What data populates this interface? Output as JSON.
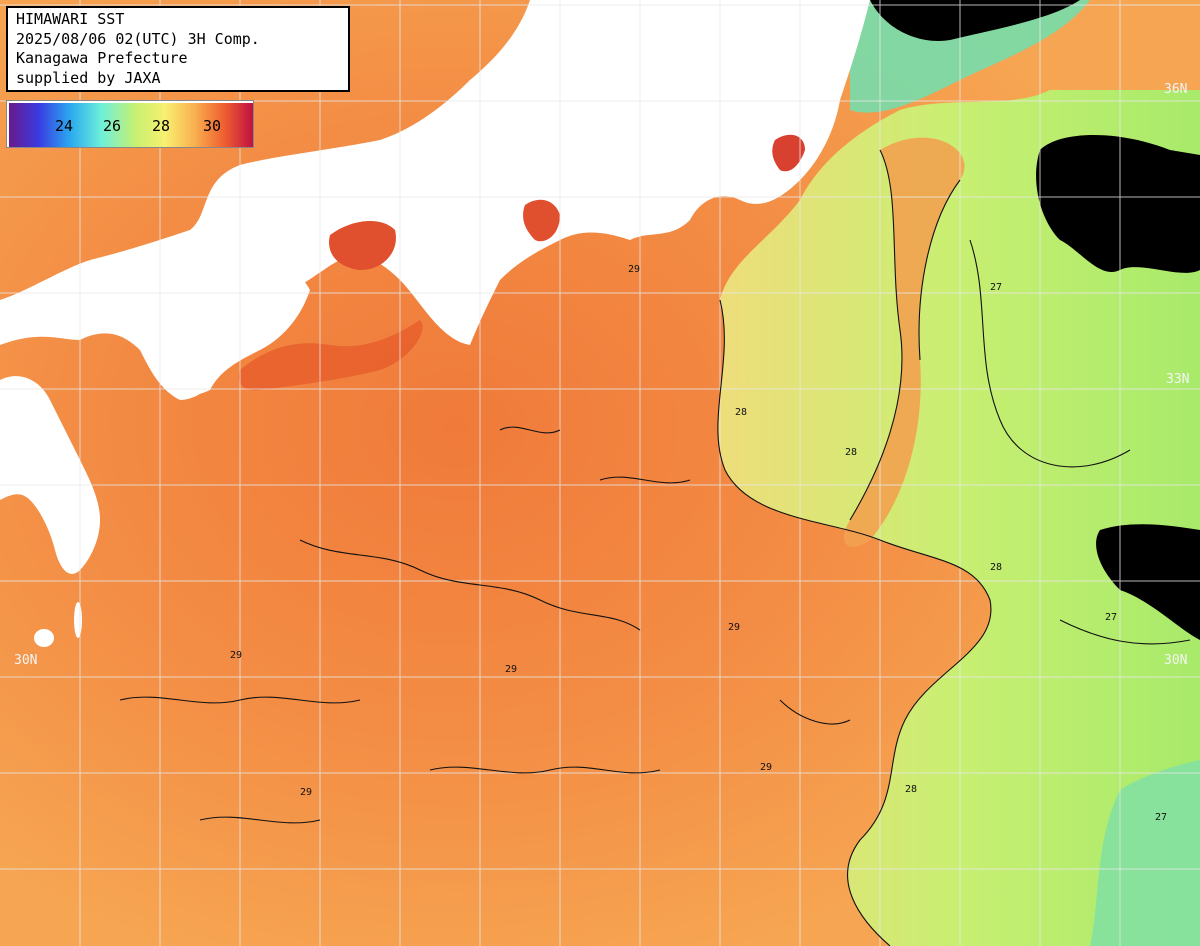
{
  "caption": {
    "line1": "HIMAWARI SST",
    "line2": "2025/08/06 02(UTC) 3H Comp.",
    "line3": "Kanagawa Prefecture",
    "line4": "supplied by JAXA"
  },
  "legend": {
    "labels": [
      "24",
      "26",
      "28",
      "30"
    ]
  },
  "latitude_labels": {
    "n36_right": "36N",
    "n33_right": "33N",
    "n30_left": "30N",
    "n30_right": "30N"
  },
  "contour_labels": [
    "28",
    "29",
    "27"
  ],
  "colors": {
    "land": "#ffffff",
    "no_data": "#000000",
    "grid": "#e8e8e8",
    "contour": "#111111",
    "sst_27": "#b8ec6a",
    "sst_28": "#f5c060",
    "sst_29": "#f4a04a",
    "sst_30": "#f07a3a"
  }
}
